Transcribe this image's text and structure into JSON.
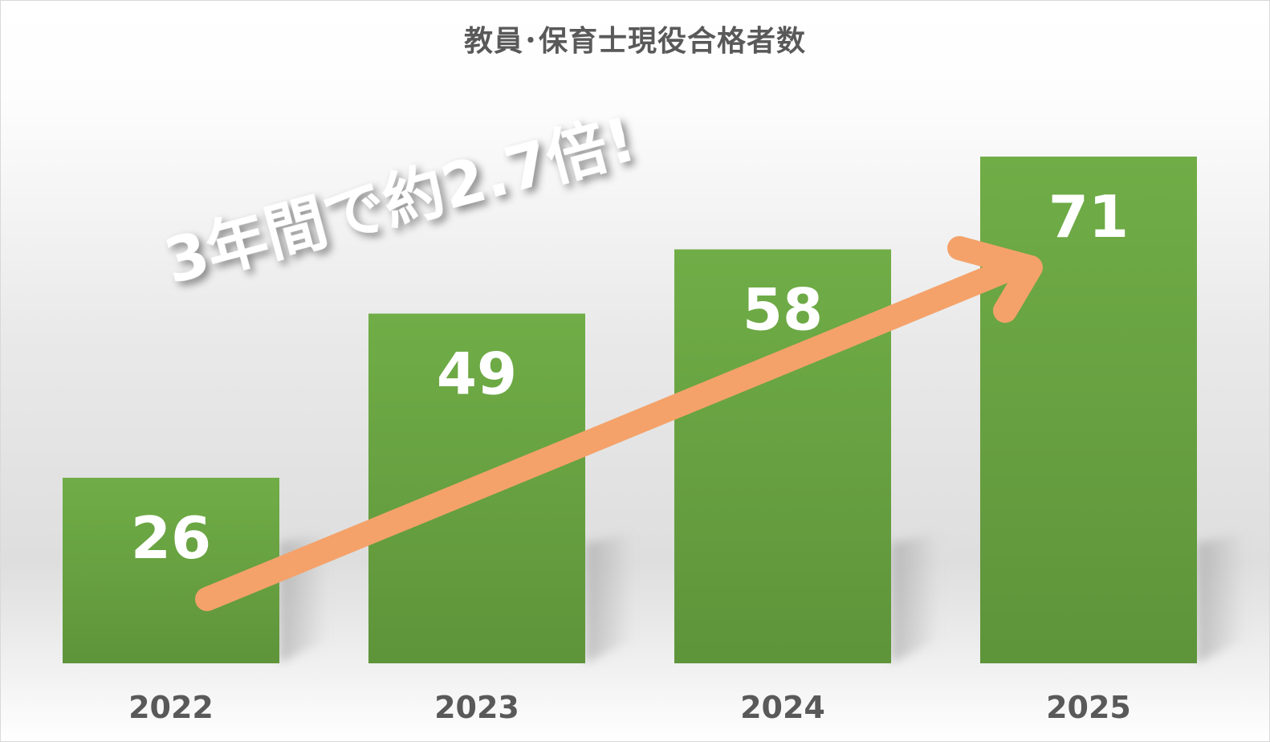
{
  "chart_data": {
    "type": "bar",
    "title": "教員･保育士現役合格者数",
    "categories": [
      "2022",
      "2023",
      "2024",
      "2025"
    ],
    "values": [
      26,
      49,
      58,
      71
    ],
    "xlabel": "",
    "ylabel": "",
    "ylim": [
      0,
      80
    ],
    "grid": false,
    "legend": "none",
    "annotation": "3年間で約2.7倍!",
    "colors": {
      "bar_top": "#70ad47",
      "bar_bottom": "#5e943a",
      "arrow": "#f4a26a",
      "value_text": "#ffffff",
      "axis_text": "#595959"
    }
  }
}
